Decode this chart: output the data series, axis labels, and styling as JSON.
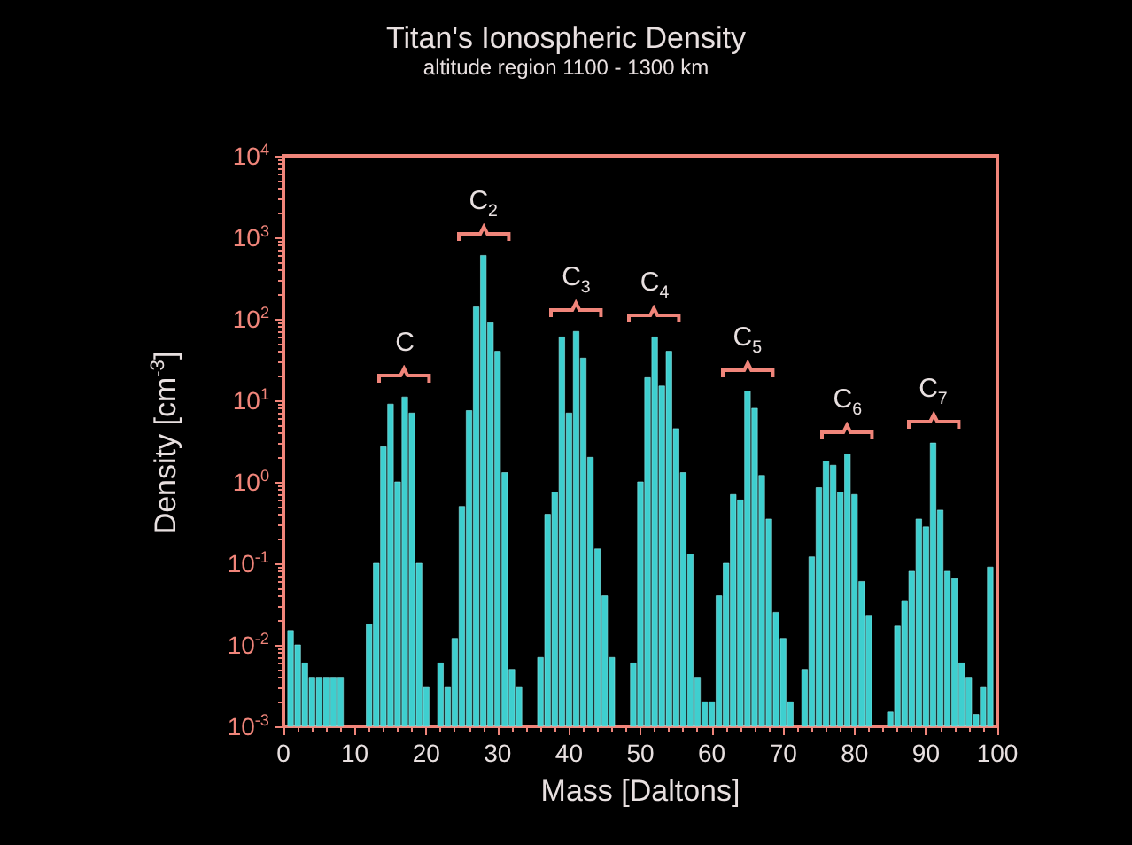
{
  "chart_data": {
    "type": "bar",
    "title": "Titan's Ionospheric Density",
    "subtitle": "altitude region 1100 - 1300 km",
    "xlabel": "Mass [Daltons]",
    "ylabel": "Density [cm$^{-3}$]",
    "x": [
      1,
      2,
      3,
      4,
      5,
      6,
      7,
      8,
      9,
      10,
      11,
      12,
      13,
      14,
      15,
      16,
      17,
      18,
      19,
      20,
      21,
      22,
      23,
      24,
      25,
      26,
      27,
      28,
      29,
      30,
      31,
      32,
      33,
      34,
      35,
      36,
      37,
      38,
      39,
      40,
      41,
      42,
      43,
      44,
      45,
      46,
      47,
      48,
      49,
      50,
      51,
      52,
      53,
      54,
      55,
      56,
      57,
      58,
      59,
      60,
      61,
      62,
      63,
      64,
      65,
      66,
      67,
      68,
      69,
      70,
      71,
      72,
      73,
      74,
      75,
      76,
      77,
      78,
      79,
      80,
      81,
      82,
      83,
      84,
      85,
      86,
      87,
      88,
      89,
      90,
      91,
      92,
      93,
      94,
      95,
      96,
      97,
      98,
      99
    ],
    "values": [
      0.015,
      0.01,
      0.006,
      0.004,
      0.004,
      0.004,
      0.004,
      0.004,
      null,
      null,
      null,
      0.018,
      0.1,
      2.7,
      9,
      1,
      11,
      7,
      0.1,
      0.003,
      null,
      0.006,
      0.003,
      0.012,
      0.5,
      7.5,
      140,
      600,
      90,
      40,
      1.3,
      0.005,
      0.003,
      null,
      null,
      0.007,
      0.4,
      0.75,
      60,
      7,
      70,
      33,
      2,
      0.15,
      0.04,
      0.007,
      null,
      null,
      0.006,
      1,
      19,
      60,
      15,
      40,
      4.5,
      1.3,
      0.13,
      0.004,
      0.002,
      0.002,
      0.04,
      0.1,
      0.7,
      0.6,
      13,
      8,
      1.2,
      0.35,
      0.025,
      0.012,
      0.002,
      null,
      0.005,
      0.12,
      0.85,
      1.8,
      1.6,
      0.75,
      2.2,
      0.7,
      0.06,
      0.023,
      null,
      null,
      0.0015,
      0.017,
      0.035,
      0.08,
      0.35,
      0.28,
      3,
      0.45,
      0.08,
      0.065,
      0.006,
      0.004,
      0.0014,
      0.003,
      0.09
    ],
    "color": "#3ecfcf",
    "log": "y",
    "grid": false,
    "xlim": [
      0,
      100
    ],
    "xticks": [
      0,
      10,
      20,
      30,
      40,
      50,
      60,
      70,
      80,
      90,
      100
    ],
    "ylim": [
      0.001,
      10000
    ],
    "yticks": [
      {
        "value": 0.001,
        "label": "10$^{-3}$"
      },
      {
        "value": 0.01,
        "label": "10$^{-2}$"
      },
      {
        "value": 0.1,
        "label": "10$^{-1}$"
      },
      {
        "value": 1,
        "label": "10$^{0}$"
      },
      {
        "value": 10,
        "label": "10$^{1}$"
      },
      {
        "value": 100,
        "label": "10$^{2}$"
      },
      {
        "value": 1000,
        "label": "10$^{3}$"
      },
      {
        "value": 10000,
        "label": "10$^{4}$"
      }
    ],
    "annotations": [
      {
        "text": "C",
        "x": 17,
        "y": 11
      },
      {
        "text": "C$_{2}$",
        "x": 28,
        "y": 600
      },
      {
        "text": "C$_{3}$",
        "x": 41,
        "y": 70
      },
      {
        "text": "C$_{4}$",
        "x": 52,
        "y": 60
      },
      {
        "text": "C$_{5}$",
        "x": 65,
        "y": 13
      },
      {
        "text": "C$_{6}$",
        "x": 79,
        "y": 2.2
      },
      {
        "text": "C$_{7}$",
        "x": 91,
        "y": 3
      }
    ]
  }
}
